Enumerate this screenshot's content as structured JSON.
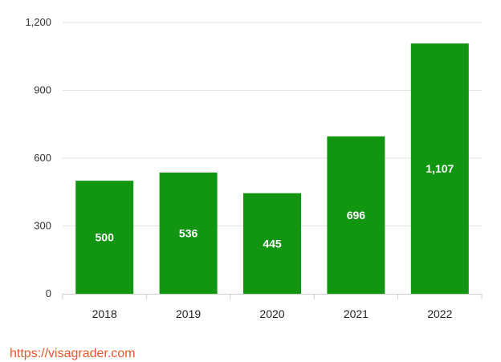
{
  "chart_data": {
    "type": "bar",
    "title": "",
    "xlabel": "",
    "ylabel": "",
    "categories": [
      "2018",
      "2019",
      "2020",
      "2021",
      "2022"
    ],
    "values": [
      500,
      536,
      445,
      696,
      1107
    ],
    "data_labels": [
      "500",
      "536",
      "445",
      "696",
      "1,107"
    ],
    "ylim": [
      0,
      1200
    ],
    "y_ticks": [
      0,
      300,
      600,
      900,
      1200
    ],
    "y_tick_labels": [
      "0",
      "300",
      "600",
      "900",
      "1,200"
    ],
    "grid": true,
    "legend": "none",
    "bar_color": "#129612"
  },
  "footer": {
    "source_url": "https://visagrader.com",
    "link_color": "#e8562a"
  }
}
